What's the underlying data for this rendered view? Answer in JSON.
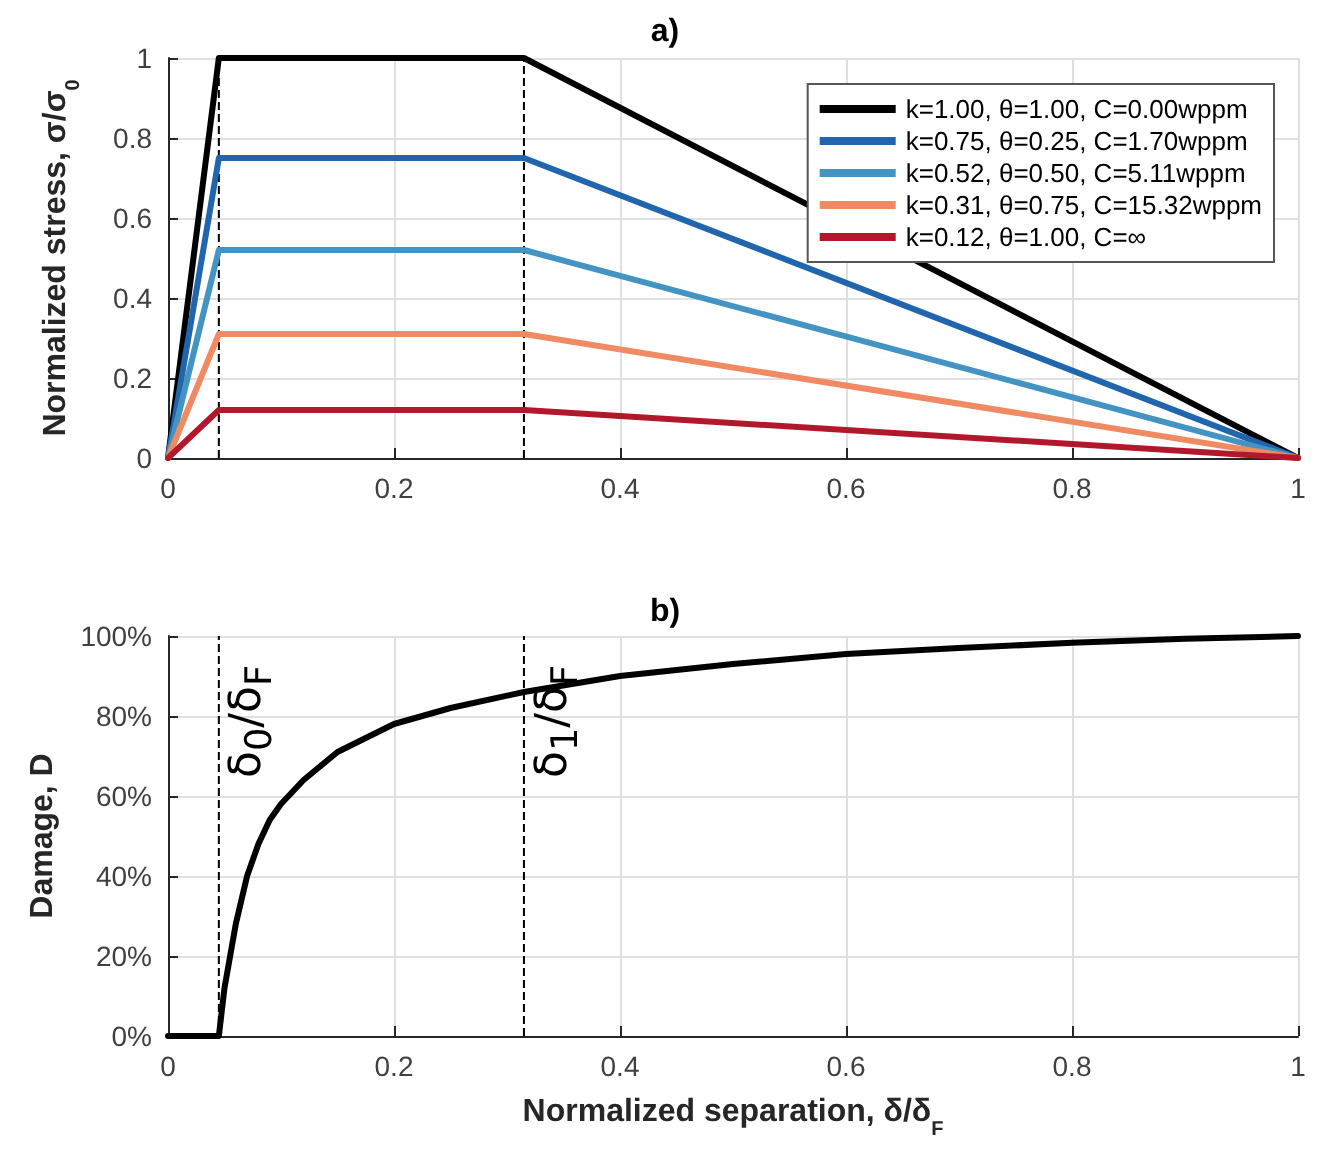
{
  "chart_data": [
    {
      "type": "line",
      "title": "a)",
      "ylabel": "Normalized stress, σ/σ$_{0}$",
      "x": [
        0,
        0.045,
        0.315,
        1
      ],
      "series": [
        {
          "name": "k=1.00, θ=1.00, C=0.00wppm",
          "color": "#000000",
          "values": [
            0,
            1,
            1,
            0
          ]
        },
        {
          "name": "k=0.75, θ=0.25, C=1.70wppm",
          "color": "#2166ac",
          "values": [
            0,
            0.75,
            0.75,
            0
          ]
        },
        {
          "name": "k=0.52, θ=0.50, C=5.11wppm",
          "color": "#4393c3",
          "values": [
            0,
            0.52,
            0.52,
            0
          ]
        },
        {
          "name": "k=0.31, θ=0.75, C=15.32wppm",
          "color": "#ef8a62",
          "values": [
            0,
            0.31,
            0.31,
            0
          ]
        },
        {
          "name": "k=0.12, θ=1.00, C=∞",
          "color": "#b2182b",
          "values": [
            0,
            0.12,
            0.12,
            0
          ]
        }
      ],
      "xlim": [
        0,
        1
      ],
      "xticks": [
        0,
        0.2,
        0.4,
        0.6,
        0.8,
        1
      ],
      "ylim": [
        0,
        1
      ],
      "yticks": [
        0,
        0.2,
        0.4,
        0.6,
        0.8,
        1
      ],
      "ref_lines": [
        {
          "axis": "x",
          "value": 0.045,
          "color": "#000000",
          "line_style": "dashed"
        },
        {
          "axis": "x",
          "value": 0.315,
          "color": "#000000",
          "line_style": "dashed"
        }
      ],
      "grid": true,
      "legend": "top right",
      "marker": "none",
      "line_style": "solid"
    },
    {
      "type": "line",
      "title": "b)",
      "xlabel": "Normalized separation, δ/δ$_{F}$",
      "ylabel": "Damage, D",
      "x": [
        0,
        0.045,
        0.05,
        0.06,
        0.07,
        0.08,
        0.09,
        0.1,
        0.12,
        0.15,
        0.2,
        0.25,
        0.315,
        0.4,
        0.5,
        0.6,
        0.7,
        0.8,
        0.9,
        1
      ],
      "series": [
        {
          "color": "#000000",
          "values": [
            0,
            0,
            12,
            28,
            40,
            48,
            54,
            58,
            64,
            71,
            78,
            82,
            86,
            90,
            93,
            95.5,
            97,
            98.3,
            99.3,
            100
          ]
        }
      ],
      "xlim": [
        0,
        1
      ],
      "xticks": [
        0,
        0.2,
        0.4,
        0.6,
        0.8,
        1
      ],
      "ylim": [
        0,
        100
      ],
      "yticks": [
        {
          "value": 0,
          "label": "0%"
        },
        {
          "value": 20,
          "label": "20%"
        },
        {
          "value": 40,
          "label": "40%"
        },
        {
          "value": 60,
          "label": "60%"
        },
        {
          "value": 80,
          "label": "80%"
        },
        {
          "value": 100,
          "label": "100%"
        }
      ],
      "ref_lines": [
        {
          "axis": "x",
          "value": 0.045,
          "label": "δ$_{0}$/δ$_{F}$",
          "color": "#000000",
          "line_style": "dashed"
        },
        {
          "axis": "x",
          "value": 0.315,
          "label": "δ$_{1}$/δ$_{F}$",
          "color": "#000000",
          "line_style": "dashed"
        }
      ],
      "grid": true,
      "marker": "none",
      "line_style": "solid"
    }
  ]
}
